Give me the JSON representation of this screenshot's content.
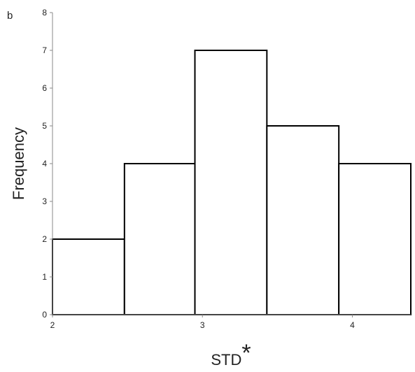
{
  "panel_label": "b",
  "chart_data": {
    "type": "bar",
    "subtype": "histogram",
    "title": "",
    "xlabel": "STD",
    "xlabel_mark": "*",
    "ylabel": "Frequency",
    "xlim": [
      2,
      4.39
    ],
    "ylim": [
      0,
      8
    ],
    "x_ticks": [
      2,
      3,
      4
    ],
    "y_ticks": [
      0,
      1,
      2,
      3,
      4,
      5,
      6,
      7,
      8
    ],
    "bins": [
      {
        "start": 2.0,
        "end": 2.48,
        "value": 2
      },
      {
        "start": 2.48,
        "end": 2.95,
        "value": 4
      },
      {
        "start": 2.95,
        "end": 3.43,
        "value": 7
      },
      {
        "start": 3.43,
        "end": 3.91,
        "value": 5
      },
      {
        "start": 3.91,
        "end": 4.39,
        "value": 4
      }
    ],
    "bar_fill": "#ffffff",
    "bar_stroke": "#000000",
    "axis_color": "#888888",
    "grid": false,
    "legend": "none"
  }
}
